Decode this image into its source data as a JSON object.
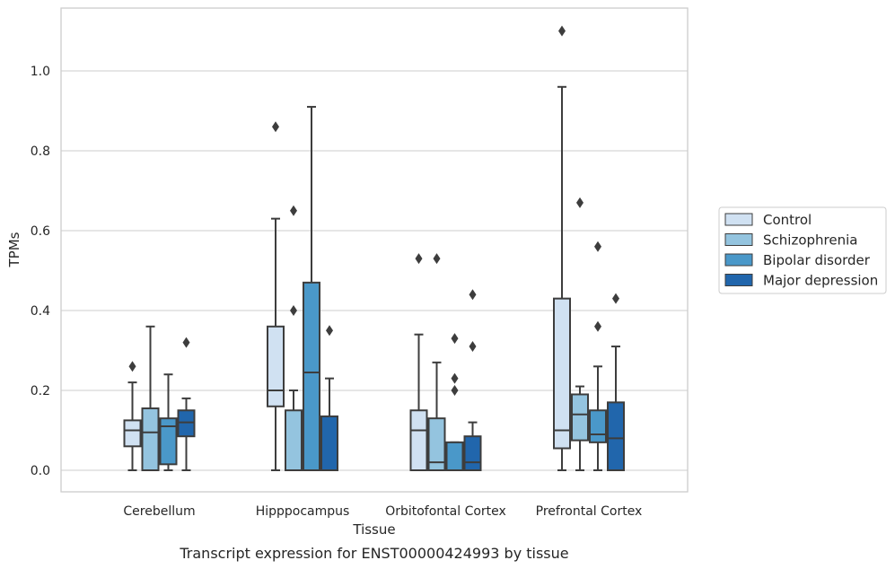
{
  "chart_data": {
    "type": "box",
    "caption": "Transcript expression for ENST00000424993 by tissue",
    "xlabel": "Tissue",
    "ylabel": "TPMs",
    "ylim": [
      -0.05,
      1.16
    ],
    "yticks": [
      0.0,
      0.2,
      0.4,
      0.6,
      0.8,
      1.0
    ],
    "ytick_labels": [
      "0.0",
      "0.2",
      "0.4",
      "0.6",
      "0.8",
      "1.0"
    ],
    "grid": "horizontal",
    "legend_position": "right",
    "categories": [
      "Cerebellum",
      "Hipppocampus",
      "Orbitofontal Cortex",
      "Prefrontal Cortex"
    ],
    "series": [
      {
        "name": "Control",
        "color": "#d0e1f2",
        "boxes": [
          {
            "whislo": 0.0,
            "q1": 0.06,
            "med": 0.1,
            "q3": 0.125,
            "whishi": 0.22,
            "fliers": [
              0.26
            ]
          },
          {
            "whislo": 0.0,
            "q1": 0.16,
            "med": 0.2,
            "q3": 0.36,
            "whishi": 0.63,
            "fliers": [
              0.86
            ]
          },
          {
            "whislo": 0.0,
            "q1": 0.0,
            "med": 0.1,
            "q3": 0.15,
            "whishi": 0.34,
            "fliers": [
              0.53
            ]
          },
          {
            "whislo": 0.0,
            "q1": 0.055,
            "med": 0.1,
            "q3": 0.43,
            "whishi": 0.96,
            "fliers": [
              1.1
            ]
          }
        ]
      },
      {
        "name": "Schizophrenia",
        "color": "#94c4df",
        "boxes": [
          {
            "whislo": 0.0,
            "q1": 0.0,
            "med": 0.095,
            "q3": 0.155,
            "whishi": 0.36,
            "fliers": []
          },
          {
            "whislo": 0.0,
            "q1": 0.0,
            "med": 0.0,
            "q3": 0.15,
            "whishi": 0.2,
            "fliers": [
              0.4,
              0.65
            ]
          },
          {
            "whislo": 0.0,
            "q1": 0.0,
            "med": 0.02,
            "q3": 0.13,
            "whishi": 0.27,
            "fliers": [
              0.53
            ]
          },
          {
            "whislo": 0.0,
            "q1": 0.075,
            "med": 0.14,
            "q3": 0.19,
            "whishi": 0.21,
            "fliers": [
              0.67
            ]
          }
        ]
      },
      {
        "name": "Bipolar disorder",
        "color": "#4a98c9",
        "boxes": [
          {
            "whislo": 0.0,
            "q1": 0.015,
            "med": 0.11,
            "q3": 0.13,
            "whishi": 0.24,
            "fliers": []
          },
          {
            "whislo": 0.0,
            "q1": 0.0,
            "med": 0.245,
            "q3": 0.47,
            "whishi": 0.91,
            "fliers": []
          },
          {
            "whislo": 0.0,
            "q1": 0.0,
            "med": 0.0,
            "q3": 0.07,
            "whishi": 0.07,
            "fliers": [
              0.2,
              0.23,
              0.33
            ]
          },
          {
            "whislo": 0.0,
            "q1": 0.07,
            "med": 0.09,
            "q3": 0.15,
            "whishi": 0.26,
            "fliers": [
              0.36,
              0.56
            ]
          }
        ]
      },
      {
        "name": "Major depression",
        "color": "#2166ac",
        "boxes": [
          {
            "whislo": 0.0,
            "q1": 0.085,
            "med": 0.12,
            "q3": 0.15,
            "whishi": 0.18,
            "fliers": [
              0.32
            ]
          },
          {
            "whislo": 0.0,
            "q1": 0.0,
            "med": 0.0,
            "q3": 0.135,
            "whishi": 0.23,
            "fliers": [
              0.35
            ]
          },
          {
            "whislo": 0.0,
            "q1": 0.0,
            "med": 0.02,
            "q3": 0.085,
            "whishi": 0.12,
            "fliers": [
              0.31,
              0.44
            ]
          },
          {
            "whislo": 0.0,
            "q1": 0.0,
            "med": 0.08,
            "q3": 0.17,
            "whishi": 0.31,
            "fliers": [
              0.43
            ]
          }
        ]
      }
    ]
  }
}
